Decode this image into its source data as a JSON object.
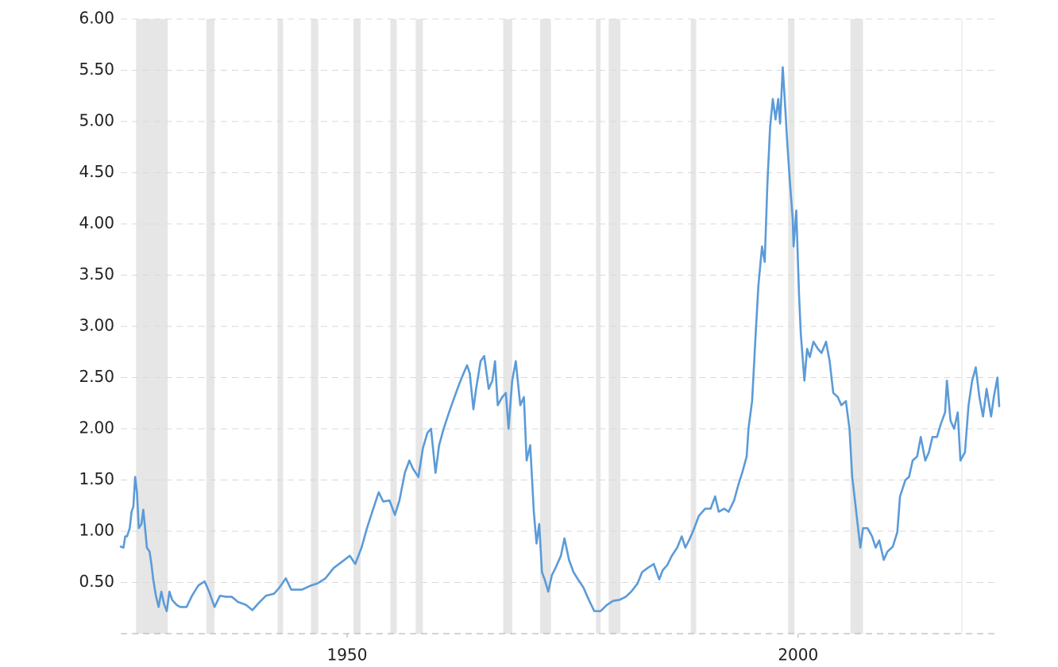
{
  "chart_data": {
    "type": "line",
    "color": "#5b9bd8",
    "grid": true,
    "xlim": [
      1924.9,
      2022.3
    ],
    "xticks": [
      1950,
      2000
    ],
    "ylim": [
      0,
      6
    ],
    "yticks": [
      {
        "value": 0.5,
        "label": "0.50"
      },
      {
        "value": 1,
        "label": "1.00"
      },
      {
        "value": 1.5,
        "label": "1.50"
      },
      {
        "value": 2,
        "label": "2.00"
      },
      {
        "value": 2.5,
        "label": "2.50"
      },
      {
        "value": 3,
        "label": "3.00"
      },
      {
        "value": 3.5,
        "label": "3.50"
      },
      {
        "value": 4,
        "label": "4.00"
      },
      {
        "value": 4.5,
        "label": "4.50"
      },
      {
        "value": 5,
        "label": "5.00"
      },
      {
        "value": 5.5,
        "label": "5.50"
      },
      {
        "value": 6,
        "label": "6.00"
      }
    ],
    "band_color": "#e6e6e6",
    "bands": [
      [
        1926.6,
        1930.1
      ],
      [
        1934.4,
        1935.3
      ],
      [
        1942.3,
        1942.9
      ],
      [
        1946.0,
        1946.8
      ],
      [
        1950.7,
        1951.5
      ],
      [
        1954.8,
        1955.5
      ],
      [
        1957.6,
        1958.4
      ],
      [
        1967.3,
        1968.3
      ],
      [
        1971.4,
        1972.6
      ],
      [
        1977.6,
        1978.1
      ],
      [
        1979.0,
        1980.3
      ],
      [
        1988.1,
        1988.7
      ],
      [
        1998.9,
        1999.6
      ],
      [
        2005.8,
        2007.2
      ]
    ],
    "x": [
      1924.9,
      1925.2,
      1925.4,
      1925.6,
      1925.9,
      1926.1,
      1926.3,
      1926.5,
      1926.7,
      1926.9,
      1927.2,
      1927.4,
      1927.6,
      1927.8,
      1928.1,
      1928.3,
      1928.5,
      1928.8,
      1929.1,
      1929.4,
      1929.7,
      1930.0,
      1930.3,
      1930.6,
      1931.1,
      1931.5,
      1932.2,
      1932.8,
      1933.5,
      1934.2,
      1934.7,
      1935.3,
      1935.9,
      1936.6,
      1937.2,
      1937.9,
      1938.8,
      1939.5,
      1940.1,
      1941.0,
      1941.9,
      1942.5,
      1943.2,
      1943.8,
      1945.0,
      1946.0,
      1946.7,
      1947.6,
      1948.5,
      1949.4,
      1950.3,
      1950.9,
      1951.6,
      1952.2,
      1952.9,
      1953.5,
      1954.0,
      1954.7,
      1955.3,
      1955.8,
      1956.4,
      1956.9,
      1957.3,
      1957.9,
      1958.4,
      1958.9,
      1959.3,
      1959.8,
      1960.2,
      1960.7,
      1961.3,
      1961.9,
      1962.4,
      1962.9,
      1963.3,
      1963.6,
      1964.0,
      1964.3,
      1964.8,
      1965.2,
      1965.7,
      1966.1,
      1966.4,
      1966.7,
      1967.2,
      1967.6,
      1967.9,
      1968.3,
      1968.7,
      1969.2,
      1969.6,
      1969.9,
      1970.3,
      1970.7,
      1971.0,
      1971.3,
      1971.6,
      1971.9,
      1972.3,
      1972.7,
      1973.1,
      1973.7,
      1974.1,
      1974.6,
      1975.1,
      1975.6,
      1976.2,
      1976.8,
      1977.4,
      1978.1,
      1978.8,
      1979.5,
      1980.2,
      1980.9,
      1981.5,
      1982.2,
      1982.7,
      1983.3,
      1984.0,
      1984.6,
      1985.0,
      1985.5,
      1986.0,
      1986.6,
      1987.1,
      1987.5,
      1987.9,
      1988.4,
      1989.0,
      1989.7,
      1990.3,
      1990.8,
      1991.2,
      1991.8,
      1992.3,
      1992.9,
      1993.4,
      1993.8,
      1994.3,
      1994.5,
      1994.9,
      1995.3,
      1995.6,
      1996.0,
      1996.3,
      1996.6,
      1996.9,
      1997.2,
      1997.5,
      1997.8,
      1998.0,
      1998.3,
      1998.6,
      1998.8,
      1999.1,
      1999.4,
      1999.5,
      1999.8,
      2000.1,
      2000.3,
      2000.7,
      2001.0,
      2001.3,
      2001.7,
      2002.2,
      2002.6,
      2003.1,
      2003.5,
      2003.9,
      2004.4,
      2004.8,
      2005.3,
      2005.7,
      2006.0,
      2006.2,
      2006.6,
      2006.9,
      2007.2,
      2007.7,
      2008.2,
      2008.6,
      2009.0,
      2009.5,
      2009.9,
      2010.5,
      2011.0,
      2011.3,
      2011.9,
      2012.3,
      2012.7,
      2013.2,
      2013.6,
      2014.1,
      2014.5,
      2014.9,
      2015.4,
      2015.8,
      2016.3,
      2016.5,
      2016.9,
      2017.3,
      2017.7,
      2018.0,
      2018.5,
      2018.9,
      2019.3,
      2019.7,
      2020.1,
      2020.5,
      2020.9,
      2021.4,
      2021.7,
      2022.1,
      2022.3
    ],
    "values": [
      0.85,
      0.84,
      0.95,
      0.95,
      1.03,
      1.19,
      1.24,
      1.53,
      1.38,
      1.03,
      1.07,
      1.21,
      1.03,
      0.84,
      0.8,
      0.68,
      0.53,
      0.37,
      0.26,
      0.41,
      0.29,
      0.22,
      0.41,
      0.33,
      0.28,
      0.26,
      0.26,
      0.37,
      0.47,
      0.51,
      0.41,
      0.26,
      0.37,
      0.36,
      0.36,
      0.31,
      0.28,
      0.23,
      0.29,
      0.37,
      0.39,
      0.45,
      0.54,
      0.43,
      0.43,
      0.47,
      0.49,
      0.54,
      0.64,
      0.7,
      0.76,
      0.68,
      0.84,
      1.03,
      1.22,
      1.38,
      1.29,
      1.3,
      1.16,
      1.3,
      1.57,
      1.69,
      1.61,
      1.53,
      1.81,
      1.96,
      2.0,
      1.57,
      1.84,
      2.0,
      2.16,
      2.31,
      2.43,
      2.54,
      2.62,
      2.54,
      2.19,
      2.39,
      2.66,
      2.71,
      2.39,
      2.47,
      2.66,
      2.23,
      2.31,
      2.35,
      2.0,
      2.47,
      2.66,
      2.23,
      2.31,
      1.69,
      1.84,
      1.19,
      0.88,
      1.07,
      0.6,
      0.53,
      0.41,
      0.57,
      0.64,
      0.76,
      0.93,
      0.72,
      0.6,
      0.53,
      0.45,
      0.33,
      0.22,
      0.22,
      0.28,
      0.32,
      0.33,
      0.36,
      0.41,
      0.49,
      0.6,
      0.64,
      0.68,
      0.53,
      0.62,
      0.67,
      0.76,
      0.84,
      0.95,
      0.84,
      0.91,
      1.01,
      1.15,
      1.22,
      1.22,
      1.34,
      1.19,
      1.22,
      1.19,
      1.3,
      1.46,
      1.57,
      1.73,
      2.0,
      2.27,
      2.93,
      3.4,
      3.78,
      3.63,
      4.4,
      4.95,
      5.22,
      5.02,
      5.22,
      4.98,
      5.53,
      5.1,
      4.79,
      4.4,
      4.05,
      3.78,
      4.13,
      3.32,
      2.93,
      2.47,
      2.78,
      2.7,
      2.85,
      2.78,
      2.74,
      2.85,
      2.66,
      2.35,
      2.31,
      2.23,
      2.27,
      2.0,
      1.53,
      1.38,
      1.07,
      0.84,
      1.03,
      1.03,
      0.95,
      0.84,
      0.91,
      0.72,
      0.8,
      0.85,
      0.99,
      1.34,
      1.5,
      1.53,
      1.69,
      1.73,
      1.92,
      1.69,
      1.77,
      1.92,
      1.92,
      2.04,
      2.16,
      2.47,
      2.08,
      2.0,
      2.16,
      1.69,
      1.77,
      2.23,
      2.47,
      2.6,
      2.31,
      2.12,
      2.39,
      2.12,
      2.31,
      2.5,
      2.22
    ]
  }
}
